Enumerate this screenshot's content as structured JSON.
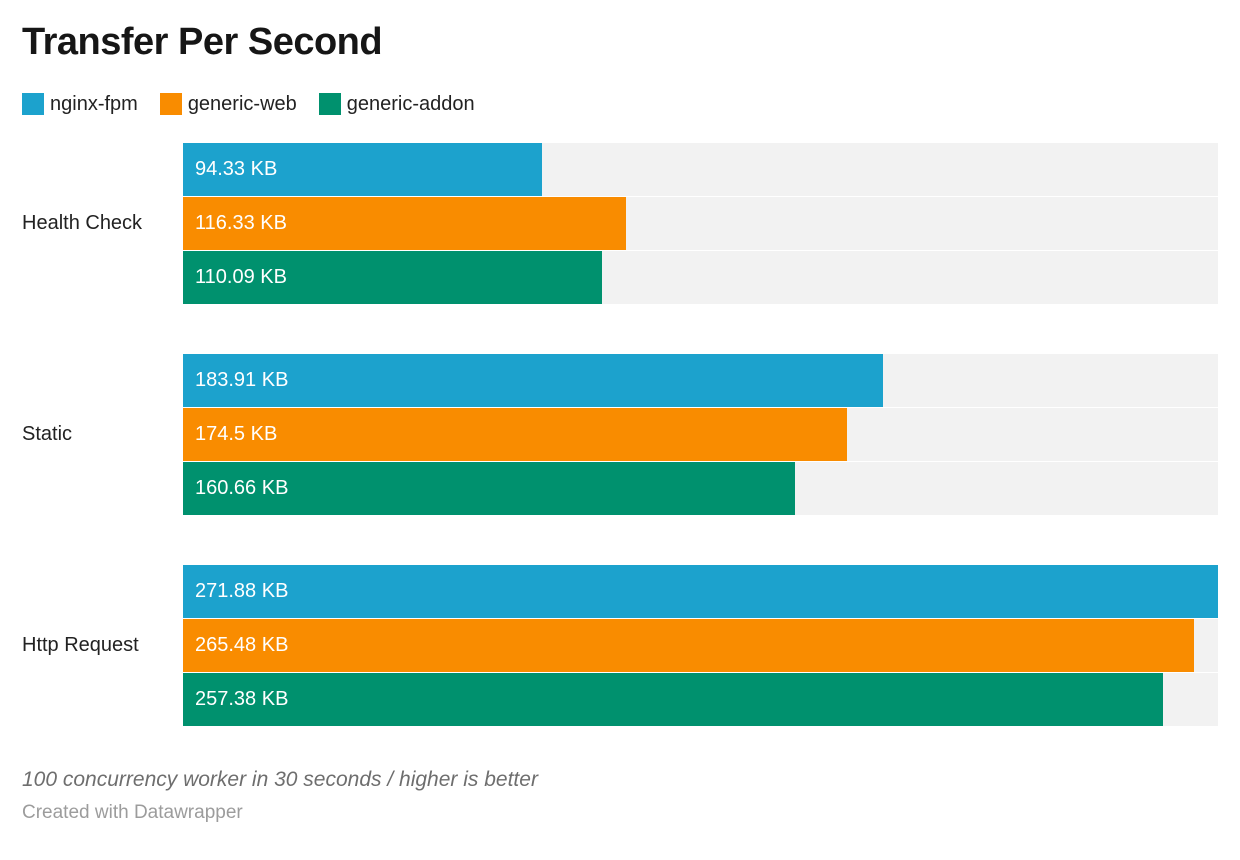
{
  "chart_data": {
    "type": "bar",
    "orientation": "horizontal",
    "title": "Transfer Per Second",
    "categories": [
      "Health Check",
      "Static",
      "Http Request"
    ],
    "series": [
      {
        "name": "nginx-fpm",
        "color": "#1ca2cd",
        "values": [
          94.33,
          183.91,
          271.88
        ],
        "labels": [
          "94.33 KB",
          "183.91 KB",
          "271.88 KB"
        ]
      },
      {
        "name": "generic-web",
        "color": "#f98c00",
        "values": [
          116.33,
          174.5,
          265.48
        ],
        "labels": [
          "116.33 KB",
          "174.5 KB",
          "265.48 KB"
        ]
      },
      {
        "name": "generic-addon",
        "color": "#00916e",
        "values": [
          110.09,
          160.66,
          257.38
        ],
        "labels": [
          "110.09 KB",
          "160.66 KB",
          "257.38 KB"
        ]
      }
    ],
    "unit": "KB",
    "xlim": [
      0,
      271.88
    ],
    "track_color": "#f2f2f2",
    "legend_position": "top",
    "grid": false,
    "value_labels_inside_bars": true
  },
  "footer": {
    "note": "100 concurrency worker in 30 seconds / higher is better",
    "attribution": "Created with Datawrapper"
  }
}
